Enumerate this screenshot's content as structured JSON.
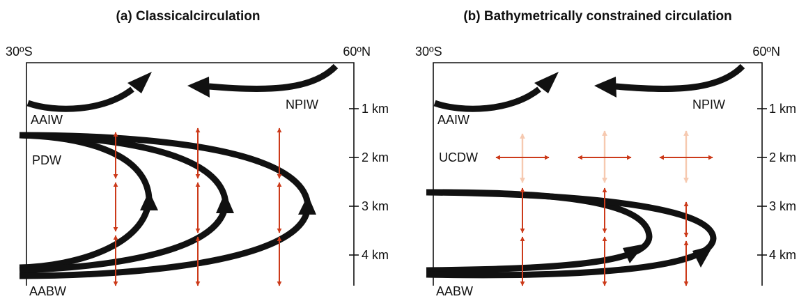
{
  "colors": {
    "line": "#111111",
    "mixing": "#cc3a1a",
    "mixing_weak": "#f6c9b0"
  },
  "panel_a": {
    "title": "(a) Classicalcirculation",
    "lat_left": "30ºS",
    "lat_right": "60ºN",
    "depth_ticks": [
      "1 km",
      "2 km",
      "3 km",
      "4 km"
    ],
    "water_masses": {
      "top_left": "AAIW",
      "top_right": "NPIW",
      "middle": "PDW",
      "bottom": "AABW"
    }
  },
  "panel_b": {
    "title": "(b) Bathymetrically constrained circulation",
    "lat_left": "30ºS",
    "lat_right": "60ºN",
    "depth_ticks": [
      "1 km",
      "2 km",
      "3 km",
      "4 km"
    ],
    "water_masses": {
      "top_left": "AAIW",
      "top_right": "NPIW",
      "middle": "UCDW",
      "bottom": "AABW"
    }
  }
}
